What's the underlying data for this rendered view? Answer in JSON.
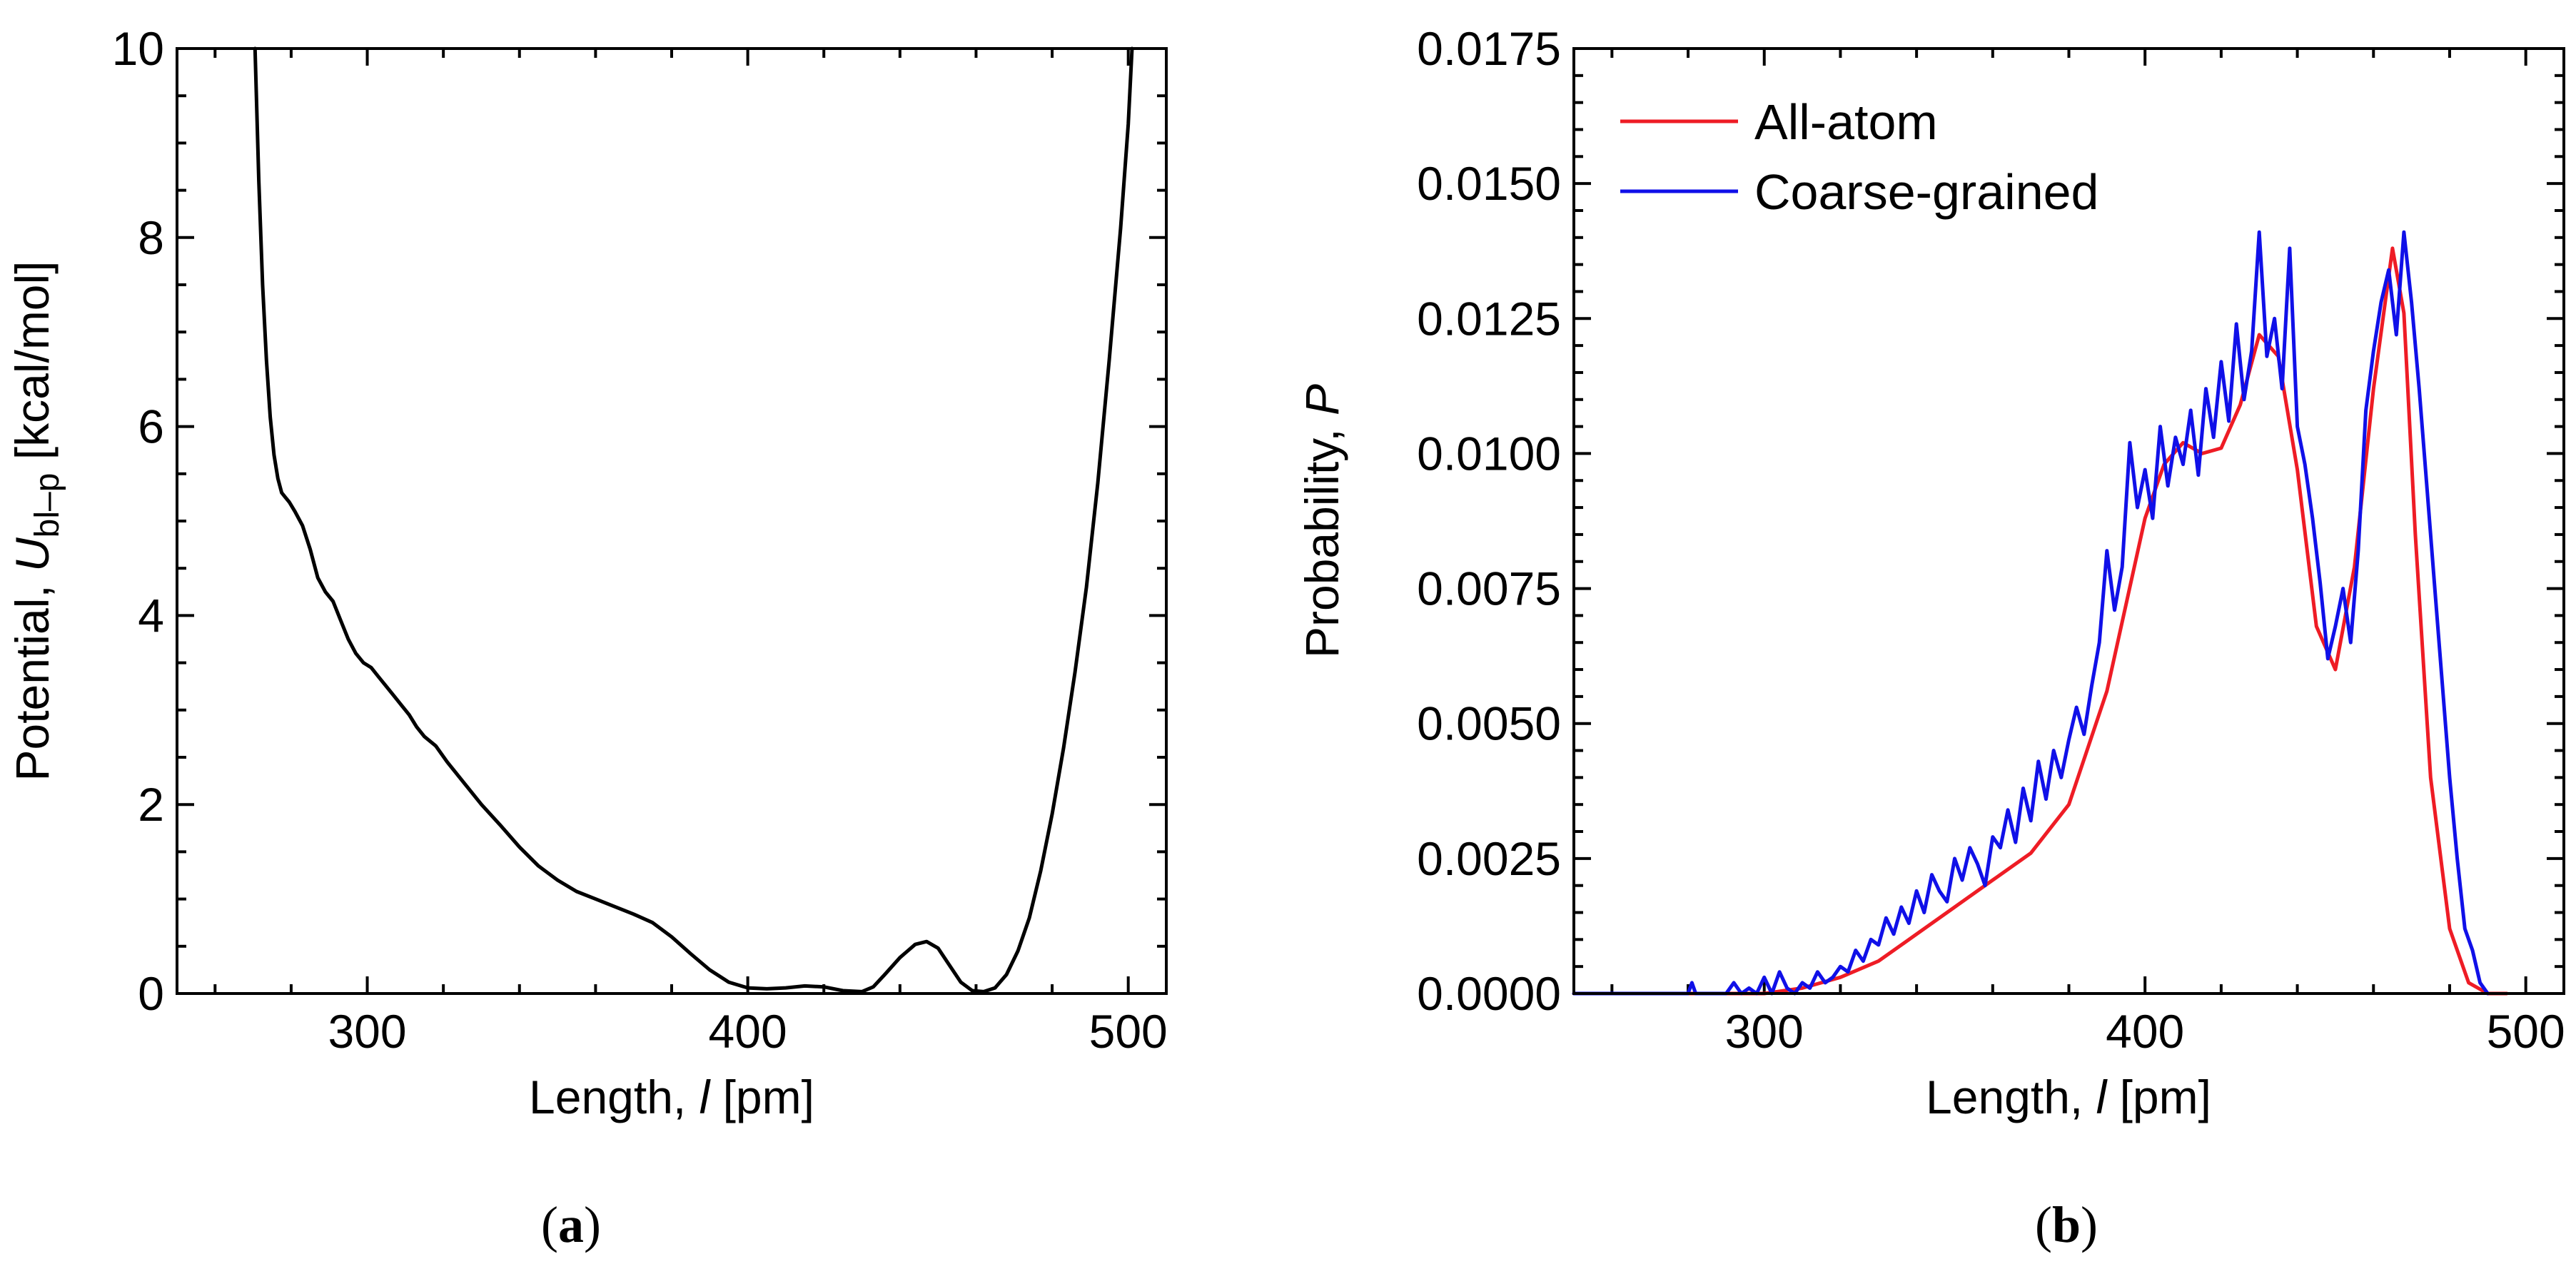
{
  "chart_data": [
    {
      "type": "line",
      "panel": "a",
      "caption": "(a)",
      "xlabel": "Length, l [pm]",
      "xlabel_parts": {
        "prefix": "Length, ",
        "var": "l",
        "suffix": " [pm]"
      },
      "ylabel": "Potential, U_bl-p [kcal/mol]",
      "ylabel_parts": {
        "prefix": "Potential, ",
        "var": "U",
        "sub": "bl–p",
        "suffix": " [kcal/mol]"
      },
      "xlim": [
        250,
        510
      ],
      "ylim": [
        0,
        10
      ],
      "xticks": [
        300,
        400,
        500
      ],
      "xtick_labels": [
        "300",
        "400",
        "500"
      ],
      "xminor_step": 20,
      "yticks": [
        0,
        2,
        4,
        6,
        8,
        10
      ],
      "ytick_labels": [
        "0",
        "2",
        "4",
        "6",
        "8",
        "10"
      ],
      "yminor_step": 0.5,
      "series": [
        {
          "name": "Potential",
          "color": "#000000",
          "x": [
            270.5,
            271.5,
            272.5,
            273.5,
            274.5,
            275.5,
            276.5,
            277.5,
            278.5,
            279.5,
            281,
            283,
            285,
            287,
            289,
            291,
            293,
            295,
            297,
            299,
            301,
            303,
            305,
            307,
            309,
            311,
            313,
            315,
            318,
            321,
            325,
            330,
            335,
            340,
            345,
            350,
            355,
            360,
            365,
            370,
            375,
            380,
            385,
            390,
            395,
            400,
            405,
            410,
            415,
            420,
            425,
            430,
            433,
            436,
            440,
            444,
            447,
            450,
            453,
            456,
            459,
            462,
            465,
            468,
            471,
            474,
            477,
            480,
            483,
            486,
            489,
            492,
            495,
            498,
            500,
            501
          ],
          "y": [
            10.0,
            8.6,
            7.5,
            6.7,
            6.1,
            5.7,
            5.45,
            5.3,
            5.25,
            5.2,
            5.1,
            4.95,
            4.7,
            4.4,
            4.25,
            4.15,
            3.95,
            3.75,
            3.6,
            3.5,
            3.45,
            3.35,
            3.25,
            3.15,
            3.05,
            2.95,
            2.82,
            2.72,
            2.62,
            2.45,
            2.25,
            2.0,
            1.78,
            1.55,
            1.35,
            1.2,
            1.08,
            1.0,
            0.92,
            0.84,
            0.75,
            0.6,
            0.42,
            0.25,
            0.12,
            0.06,
            0.05,
            0.06,
            0.08,
            0.07,
            0.03,
            0.02,
            0.07,
            0.2,
            0.38,
            0.52,
            0.55,
            0.48,
            0.3,
            0.12,
            0.03,
            0.02,
            0.06,
            0.2,
            0.45,
            0.8,
            1.3,
            1.9,
            2.6,
            3.4,
            4.3,
            5.4,
            6.7,
            8.1,
            9.2,
            10.0
          ]
        }
      ]
    },
    {
      "type": "line",
      "panel": "b",
      "caption": "(b)",
      "xlabel": "Length, l [pm]",
      "xlabel_parts": {
        "prefix": "Length, ",
        "var": "l",
        "suffix": " [pm]"
      },
      "ylabel": "Probability, P",
      "ylabel_parts": {
        "prefix": "Probability, ",
        "var": "P"
      },
      "xlim": [
        250,
        510
      ],
      "ylim": [
        0,
        0.0175
      ],
      "xticks": [
        300,
        400,
        500
      ],
      "xtick_labels": [
        "300",
        "400",
        "500"
      ],
      "xminor_step": 20,
      "yticks": [
        0,
        0.0025,
        0.005,
        0.0075,
        0.01,
        0.0125,
        0.015,
        0.0175
      ],
      "ytick_labels": [
        "0.0000",
        "0.0025",
        "0.0050",
        "0.0075",
        "0.0100",
        "0.0125",
        "0.0150",
        "0.0175"
      ],
      "yminor_step": 0.0005,
      "legend": {
        "position": "top-left",
        "entries": [
          "All-atom",
          "Coarse-grained"
        ]
      },
      "series": [
        {
          "name": "All-atom",
          "color": "#ee1c25",
          "x": [
            250,
            300,
            310,
            320,
            330,
            340,
            350,
            360,
            370,
            380,
            390,
            395,
            400,
            405,
            410,
            415,
            420,
            425,
            430,
            435,
            440,
            445,
            450,
            455,
            460,
            465,
            468,
            471,
            475,
            480,
            485,
            490,
            495
          ],
          "y": [
            0.0,
            0.0,
            0.0001,
            0.0003,
            0.0006,
            0.0011,
            0.0016,
            0.0021,
            0.0026,
            0.0035,
            0.0056,
            0.0072,
            0.0088,
            0.0098,
            0.0102,
            0.01,
            0.0101,
            0.0109,
            0.0122,
            0.0118,
            0.0097,
            0.0068,
            0.006,
            0.0079,
            0.0112,
            0.0138,
            0.0126,
            0.0085,
            0.004,
            0.0012,
            0.0002,
            0.0,
            0.0
          ]
        },
        {
          "name": "Coarse-grained",
          "color": "#1010e8",
          "x": [
            250,
            280,
            281,
            282,
            290,
            292,
            294,
            296,
            298,
            300,
            302,
            304,
            306,
            308,
            310,
            312,
            314,
            316,
            318,
            320,
            322,
            324,
            326,
            328,
            330,
            332,
            334,
            336,
            338,
            340,
            342,
            344,
            346,
            348,
            350,
            352,
            354,
            356,
            358,
            360,
            362,
            364,
            366,
            368,
            370,
            372,
            374,
            376,
            378,
            380,
            382,
            384,
            386,
            388,
            390,
            392,
            394,
            396,
            398,
            400,
            402,
            404,
            406,
            408,
            410,
            412,
            414,
            416,
            418,
            420,
            422,
            424,
            426,
            428,
            430,
            432,
            434,
            436,
            438,
            440,
            442,
            444,
            446,
            448,
            450,
            452,
            454,
            456,
            458,
            460,
            462,
            464,
            466,
            468,
            470,
            472,
            474,
            476,
            478,
            480,
            482,
            484,
            486,
            488,
            490
          ],
          "y": [
            0.0,
            0.0,
            0.0002,
            0.0,
            0.0,
            0.0002,
            0.0,
            0.0001,
            0.0,
            0.0003,
            0.0,
            0.0004,
            0.0001,
            0.0,
            0.0002,
            0.0001,
            0.0004,
            0.0002,
            0.0003,
            0.0005,
            0.0004,
            0.0008,
            0.0006,
            0.001,
            0.0009,
            0.0014,
            0.0011,
            0.0016,
            0.0013,
            0.0019,
            0.0015,
            0.0022,
            0.0019,
            0.0017,
            0.0025,
            0.0021,
            0.0027,
            0.0024,
            0.002,
            0.0029,
            0.0027,
            0.0034,
            0.0028,
            0.0038,
            0.0032,
            0.0043,
            0.0036,
            0.0045,
            0.004,
            0.0047,
            0.0053,
            0.0048,
            0.0057,
            0.0065,
            0.0082,
            0.0071,
            0.0079,
            0.0102,
            0.009,
            0.0097,
            0.0088,
            0.0105,
            0.0094,
            0.0103,
            0.0098,
            0.0108,
            0.0096,
            0.0112,
            0.0103,
            0.0117,
            0.0106,
            0.0124,
            0.011,
            0.0119,
            0.0141,
            0.0118,
            0.0125,
            0.0112,
            0.0138,
            0.0105,
            0.0098,
            0.0088,
            0.0076,
            0.0062,
            0.0068,
            0.0075,
            0.0065,
            0.0082,
            0.0108,
            0.0119,
            0.0128,
            0.0134,
            0.0122,
            0.0141,
            0.0128,
            0.0112,
            0.0094,
            0.0076,
            0.0058,
            0.004,
            0.0025,
            0.0012,
            0.0008,
            0.0002,
            0.0
          ]
        }
      ]
    }
  ]
}
